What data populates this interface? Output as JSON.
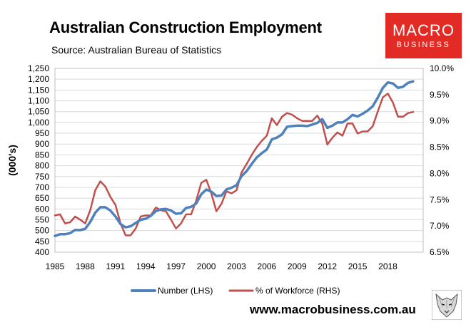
{
  "header": {
    "title": "Australian Construction Employment",
    "subtitle": "Source: Australian Bureau of Statistics"
  },
  "logo": {
    "line1": "MACRO",
    "line2": "BUSINESS",
    "color": "#e32b26"
  },
  "footer": {
    "url": "www.macrobusiness.com.au"
  },
  "chart_data": {
    "type": "line",
    "title": "Australian Construction Employment",
    "subtitle": "Source: Australian Bureau of Statistics",
    "ylabel": "(000's)",
    "xlabel": "",
    "grid": true,
    "legend_position": "bottom",
    "x_ticks": [
      "1985",
      "1988",
      "1991",
      "1994",
      "1997",
      "2000",
      "2003",
      "2006",
      "2009",
      "2012",
      "2015",
      "2018"
    ],
    "ylim_left": [
      400,
      1250
    ],
    "y_ticks_left": [
      "400",
      "450",
      "500",
      "550",
      "600",
      "650",
      "700",
      "750",
      "800",
      "850",
      "900",
      "950",
      "1,000",
      "1,050",
      "1,100",
      "1,150",
      "1,200",
      "1,250"
    ],
    "ylim_right": [
      6.5,
      10.0
    ],
    "y_ticks_right": [
      "6.5%",
      "7.0%",
      "7.5%",
      "8.0%",
      "8.5%",
      "9.0%",
      "9.5%",
      "10.0%"
    ],
    "xlim": [
      1985,
      2021.5
    ],
    "series": [
      {
        "name": "Number (LHS)",
        "axis": "left",
        "color": "#4f81bd",
        "points": [
          [
            1985.0,
            475
          ],
          [
            1985.5,
            483
          ],
          [
            1986.0,
            483
          ],
          [
            1986.5,
            488
          ],
          [
            1987.0,
            503
          ],
          [
            1987.5,
            502
          ],
          [
            1988.0,
            508
          ],
          [
            1988.5,
            540
          ],
          [
            1989.0,
            583
          ],
          [
            1989.5,
            608
          ],
          [
            1990.0,
            608
          ],
          [
            1990.5,
            592
          ],
          [
            1991.0,
            565
          ],
          [
            1991.5,
            530
          ],
          [
            1992.0,
            515
          ],
          [
            1992.5,
            520
          ],
          [
            1993.0,
            535
          ],
          [
            1993.5,
            550
          ],
          [
            1994.0,
            555
          ],
          [
            1994.5,
            568
          ],
          [
            1995.0,
            590
          ],
          [
            1995.5,
            598
          ],
          [
            1996.0,
            600
          ],
          [
            1996.5,
            593
          ],
          [
            1997.0,
            578
          ],
          [
            1997.5,
            580
          ],
          [
            1998.0,
            605
          ],
          [
            1998.5,
            610
          ],
          [
            1999.0,
            625
          ],
          [
            1999.5,
            668
          ],
          [
            2000.0,
            690
          ],
          [
            2000.5,
            680
          ],
          [
            2001.0,
            660
          ],
          [
            2001.5,
            662
          ],
          [
            2002.0,
            690
          ],
          [
            2002.5,
            698
          ],
          [
            2003.0,
            710
          ],
          [
            2003.5,
            752
          ],
          [
            2004.0,
            775
          ],
          [
            2004.5,
            808
          ],
          [
            2005.0,
            838
          ],
          [
            2005.5,
            858
          ],
          [
            2006.0,
            875
          ],
          [
            2006.5,
            922
          ],
          [
            2007.0,
            930
          ],
          [
            2007.5,
            945
          ],
          [
            2008.0,
            980
          ],
          [
            2008.5,
            983
          ],
          [
            2009.0,
            985
          ],
          [
            2009.5,
            985
          ],
          [
            2010.0,
            983
          ],
          [
            2010.5,
            990
          ],
          [
            2011.0,
            998
          ],
          [
            2011.5,
            1015
          ],
          [
            2012.0,
            975
          ],
          [
            2012.5,
            985
          ],
          [
            2013.0,
            1000
          ],
          [
            2013.5,
            1000
          ],
          [
            2014.0,
            1015
          ],
          [
            2014.5,
            1035
          ],
          [
            2015.0,
            1028
          ],
          [
            2015.5,
            1040
          ],
          [
            2016.0,
            1055
          ],
          [
            2016.5,
            1075
          ],
          [
            2017.0,
            1115
          ],
          [
            2017.5,
            1160
          ],
          [
            2018.0,
            1185
          ],
          [
            2018.5,
            1180
          ],
          [
            2019.0,
            1160
          ],
          [
            2019.5,
            1165
          ],
          [
            2020.0,
            1183
          ],
          [
            2020.5,
            1190
          ]
        ]
      },
      {
        "name": "% of Workforce (RHS)",
        "axis": "right",
        "color": "#c0504d",
        "points": [
          [
            1985.0,
            7.2
          ],
          [
            1985.5,
            7.22
          ],
          [
            1986.0,
            7.05
          ],
          [
            1986.5,
            7.07
          ],
          [
            1987.0,
            7.18
          ],
          [
            1987.5,
            7.12
          ],
          [
            1988.0,
            7.05
          ],
          [
            1988.5,
            7.3
          ],
          [
            1989.0,
            7.68
          ],
          [
            1989.5,
            7.85
          ],
          [
            1990.0,
            7.75
          ],
          [
            1990.5,
            7.55
          ],
          [
            1991.0,
            7.4
          ],
          [
            1991.5,
            7.05
          ],
          [
            1992.0,
            6.82
          ],
          [
            1992.5,
            6.82
          ],
          [
            1993.0,
            6.95
          ],
          [
            1993.5,
            7.18
          ],
          [
            1994.0,
            7.2
          ],
          [
            1994.5,
            7.2
          ],
          [
            1995.0,
            7.35
          ],
          [
            1995.5,
            7.3
          ],
          [
            1996.0,
            7.28
          ],
          [
            1996.5,
            7.12
          ],
          [
            1997.0,
            6.95
          ],
          [
            1997.5,
            7.05
          ],
          [
            1998.0,
            7.22
          ],
          [
            1998.5,
            7.22
          ],
          [
            1999.0,
            7.48
          ],
          [
            1999.5,
            7.82
          ],
          [
            2000.0,
            7.88
          ],
          [
            2000.5,
            7.62
          ],
          [
            2001.0,
            7.28
          ],
          [
            2001.5,
            7.42
          ],
          [
            2002.0,
            7.66
          ],
          [
            2002.5,
            7.62
          ],
          [
            2003.0,
            7.68
          ],
          [
            2003.5,
            8.02
          ],
          [
            2004.0,
            8.18
          ],
          [
            2004.5,
            8.35
          ],
          [
            2005.0,
            8.5
          ],
          [
            2005.5,
            8.62
          ],
          [
            2006.0,
            8.72
          ],
          [
            2006.5,
            9.05
          ],
          [
            2007.0,
            8.92
          ],
          [
            2007.5,
            9.08
          ],
          [
            2008.0,
            9.15
          ],
          [
            2008.5,
            9.12
          ],
          [
            2009.0,
            9.05
          ],
          [
            2009.5,
            9.0
          ],
          [
            2010.0,
            9.0
          ],
          [
            2010.5,
            9.0
          ],
          [
            2011.0,
            9.1
          ],
          [
            2011.5,
            8.95
          ],
          [
            2012.0,
            8.55
          ],
          [
            2012.5,
            8.68
          ],
          [
            2013.0,
            8.78
          ],
          [
            2013.5,
            8.72
          ],
          [
            2014.0,
            8.95
          ],
          [
            2014.5,
            8.95
          ],
          [
            2015.0,
            8.76
          ],
          [
            2015.5,
            8.8
          ],
          [
            2016.0,
            8.8
          ],
          [
            2016.5,
            8.9
          ],
          [
            2017.0,
            9.18
          ],
          [
            2017.5,
            9.45
          ],
          [
            2018.0,
            9.52
          ],
          [
            2018.5,
            9.35
          ],
          [
            2019.0,
            9.08
          ],
          [
            2019.5,
            9.08
          ],
          [
            2020.0,
            9.15
          ],
          [
            2020.5,
            9.17
          ]
        ]
      }
    ]
  }
}
